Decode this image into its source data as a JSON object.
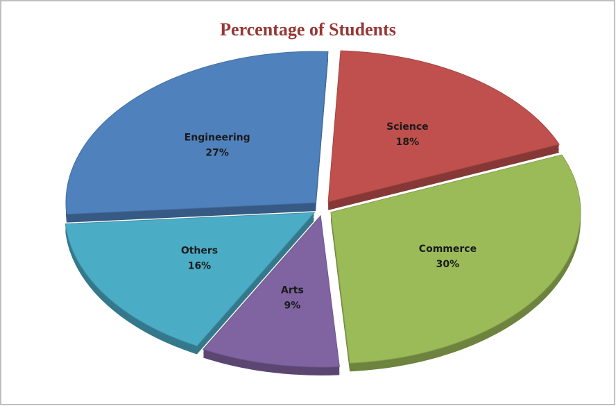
{
  "chart_data": {
    "type": "pie",
    "title": "Percentage of Students",
    "categories": [
      "Science",
      "Commerce",
      "Arts",
      "Others",
      "Engineering"
    ],
    "values": [
      18,
      30,
      9,
      16,
      27
    ],
    "value_labels": [
      "18%",
      "30%",
      "9%",
      "16%",
      "27%"
    ],
    "colors": [
      "#c0504d",
      "#9bbb59",
      "#8064a2",
      "#4bacc6",
      "#4f81bd"
    ]
  }
}
